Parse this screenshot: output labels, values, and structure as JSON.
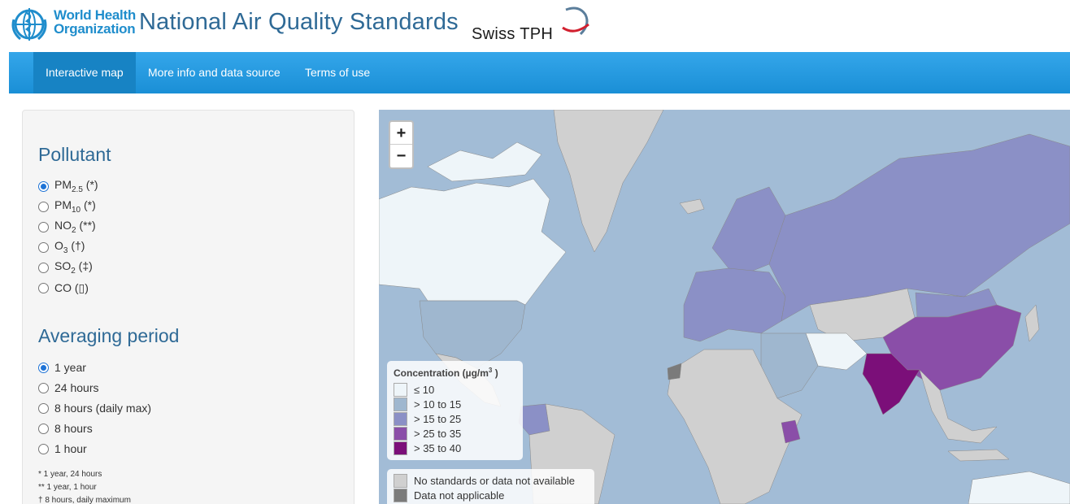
{
  "header": {
    "org_line1": "World Health",
    "org_line2": "Organization",
    "title": "National Air Quality Standards",
    "partner": "Swiss TPH"
  },
  "nav": {
    "items": [
      {
        "label": "Interactive map",
        "active": true
      },
      {
        "label": "More info and data source",
        "active": false
      },
      {
        "label": "Terms of use",
        "active": false
      }
    ]
  },
  "sidebar": {
    "pollutant_title": "Pollutant",
    "pollutants": [
      {
        "base": "PM",
        "sub": "2.5",
        "suffix": " (*)",
        "checked": true
      },
      {
        "base": "PM",
        "sub": "10",
        "suffix": " (*)",
        "checked": false
      },
      {
        "base": "NO",
        "sub": "2",
        "suffix": " (**)",
        "checked": false
      },
      {
        "base": "O",
        "sub": "3",
        "suffix": " (†)",
        "checked": false
      },
      {
        "base": "SO",
        "sub": "2",
        "suffix": " (‡)",
        "checked": false
      },
      {
        "base": "CO",
        "sub": "",
        "suffix": " (▯)",
        "checked": false
      }
    ],
    "averaging_title": "Averaging period",
    "periods": [
      {
        "label": "1 year",
        "checked": true
      },
      {
        "label": "24 hours",
        "checked": false
      },
      {
        "label": "8 hours (daily max)",
        "checked": false
      },
      {
        "label": "8 hours",
        "checked": false
      },
      {
        "label": "1 hour",
        "checked": false
      }
    ],
    "footnotes": [
      "* 1 year, 24 hours",
      "** 1 year, 1 hour",
      "† 8 hours, daily maximum"
    ]
  },
  "map": {
    "zoom_in": "+",
    "zoom_out": "−",
    "legend": {
      "title_prefix": "Concentration (µg/m",
      "title_sup": "3",
      "title_suffix": " )",
      "classes": [
        {
          "label": "≤ 10",
          "color": "#eef5f9"
        },
        {
          "label": "> 10 to 15",
          "color": "#9fb7cf"
        },
        {
          "label": "> 15 to 25",
          "color": "#8b90c6"
        },
        {
          "label": "> 25 to 35",
          "color": "#8a4ea8"
        },
        {
          "label": "> 35 to 40",
          "color": "#7b0f79"
        }
      ]
    },
    "legend2": [
      {
        "label": "No standards or data not available",
        "color": "#d0d0d0"
      },
      {
        "label": "Data not applicable",
        "color": "#7b7b7b"
      }
    ]
  }
}
